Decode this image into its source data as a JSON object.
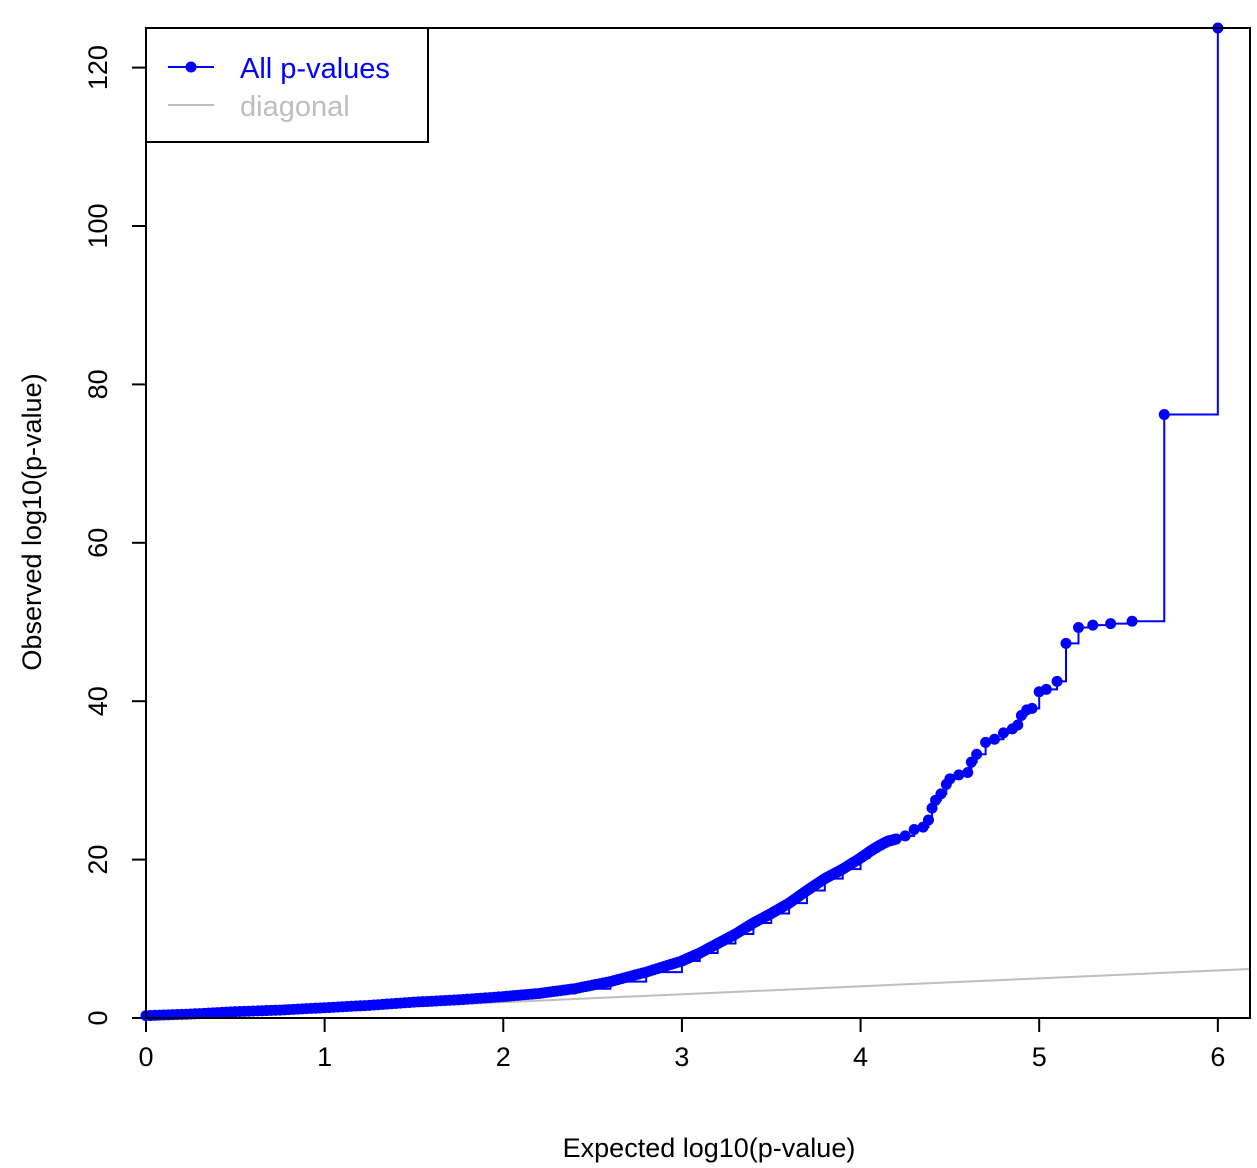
{
  "chart_data": {
    "type": "line",
    "title": "",
    "xlabel": "Expected log10(p-value)",
    "ylabel": "Observed log10(p-value)",
    "xlim": [
      0,
      6.18
    ],
    "ylim": [
      0,
      125
    ],
    "x_ticks": [
      0,
      1,
      2,
      3,
      4,
      5,
      6
    ],
    "y_ticks": [
      0,
      20,
      40,
      60,
      80,
      100,
      120
    ],
    "grid": false,
    "legend_position": "top-left",
    "series": [
      {
        "name": "All p-values",
        "style": "points with step line",
        "color": "#0000ff",
        "x": [
          0,
          0.25,
          0.5,
          0.75,
          1.0,
          1.25,
          1.5,
          1.75,
          2.0,
          2.2,
          2.4,
          2.6,
          2.8,
          3.0,
          3.1,
          3.2,
          3.3,
          3.4,
          3.5,
          3.6,
          3.7,
          3.8,
          3.9,
          4.0,
          4.05,
          4.1,
          4.15,
          4.2,
          4.25,
          4.3,
          4.35,
          4.38,
          4.4,
          4.42,
          4.45,
          4.48,
          4.5,
          4.55,
          4.6,
          4.62,
          4.65,
          4.7,
          4.75,
          4.8,
          4.85,
          4.88,
          4.9,
          4.93,
          4.96,
          5.0,
          5.04,
          5.1,
          5.15,
          5.22,
          5.3,
          5.4,
          5.52,
          5.7,
          6.0
        ],
        "y": [
          0.3,
          0.5,
          0.8,
          1.0,
          1.3,
          1.6,
          2.0,
          2.3,
          2.7,
          3.1,
          3.7,
          4.6,
          5.8,
          7.2,
          8.2,
          9.4,
          10.6,
          12.0,
          13.2,
          14.5,
          16.1,
          17.6,
          18.8,
          20.2,
          21.0,
          21.7,
          22.3,
          22.6,
          23.0,
          23.8,
          24.1,
          25.0,
          26.5,
          27.5,
          28.3,
          29.5,
          30.2,
          30.7,
          31.0,
          32.3,
          33.3,
          34.8,
          35.2,
          36.0,
          36.5,
          37.0,
          38.2,
          38.9,
          39.1,
          41.2,
          41.5,
          42.5,
          47.3,
          49.3,
          49.6,
          49.8,
          50.1,
          76.2,
          125.0
        ]
      },
      {
        "name": "diagonal",
        "style": "line",
        "color": "#bebebe",
        "x": [
          0,
          6.18
        ],
        "y": [
          0,
          6.18
        ]
      }
    ]
  }
}
